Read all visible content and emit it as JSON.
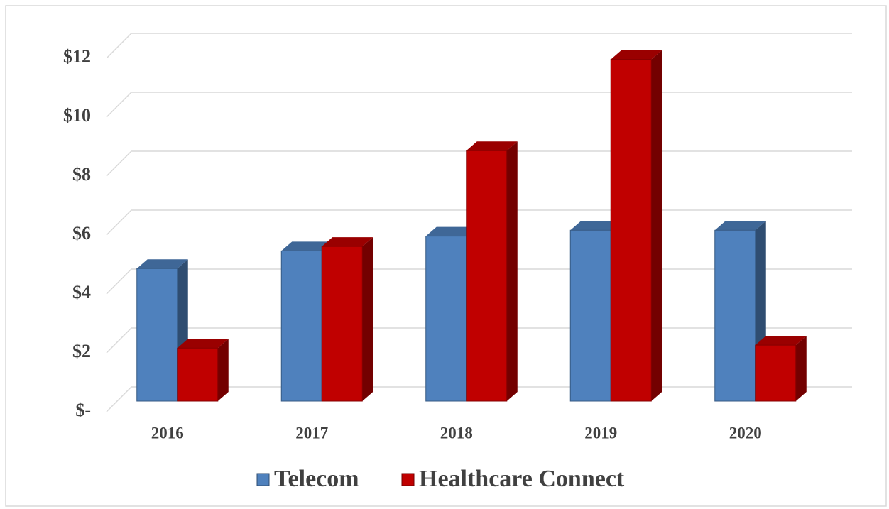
{
  "chart_data": {
    "type": "bar3d",
    "categories": [
      "2016",
      "2017",
      "2018",
      "2019",
      "2020"
    ],
    "series": [
      {
        "name": "Telecom",
        "color": "#4f81bd",
        "values": [
          4.5,
          5.1,
          5.6,
          5.8,
          5.8
        ]
      },
      {
        "name": "Healthcare Connect",
        "color": "#c00000",
        "values": [
          1.8,
          5.25,
          8.5,
          11.6,
          1.9
        ]
      }
    ],
    "ylim": [
      0,
      12
    ],
    "yticks": [
      {
        "value": 0,
        "label": "$-"
      },
      {
        "value": 2,
        "label": "$2"
      },
      {
        "value": 4,
        "label": "$4"
      },
      {
        "value": 6,
        "label": "$6"
      },
      {
        "value": 8,
        "label": "$8"
      },
      {
        "value": 10,
        "label": "$10"
      },
      {
        "value": 12,
        "label": "$12"
      }
    ],
    "grid": true,
    "legend": "bottom"
  }
}
